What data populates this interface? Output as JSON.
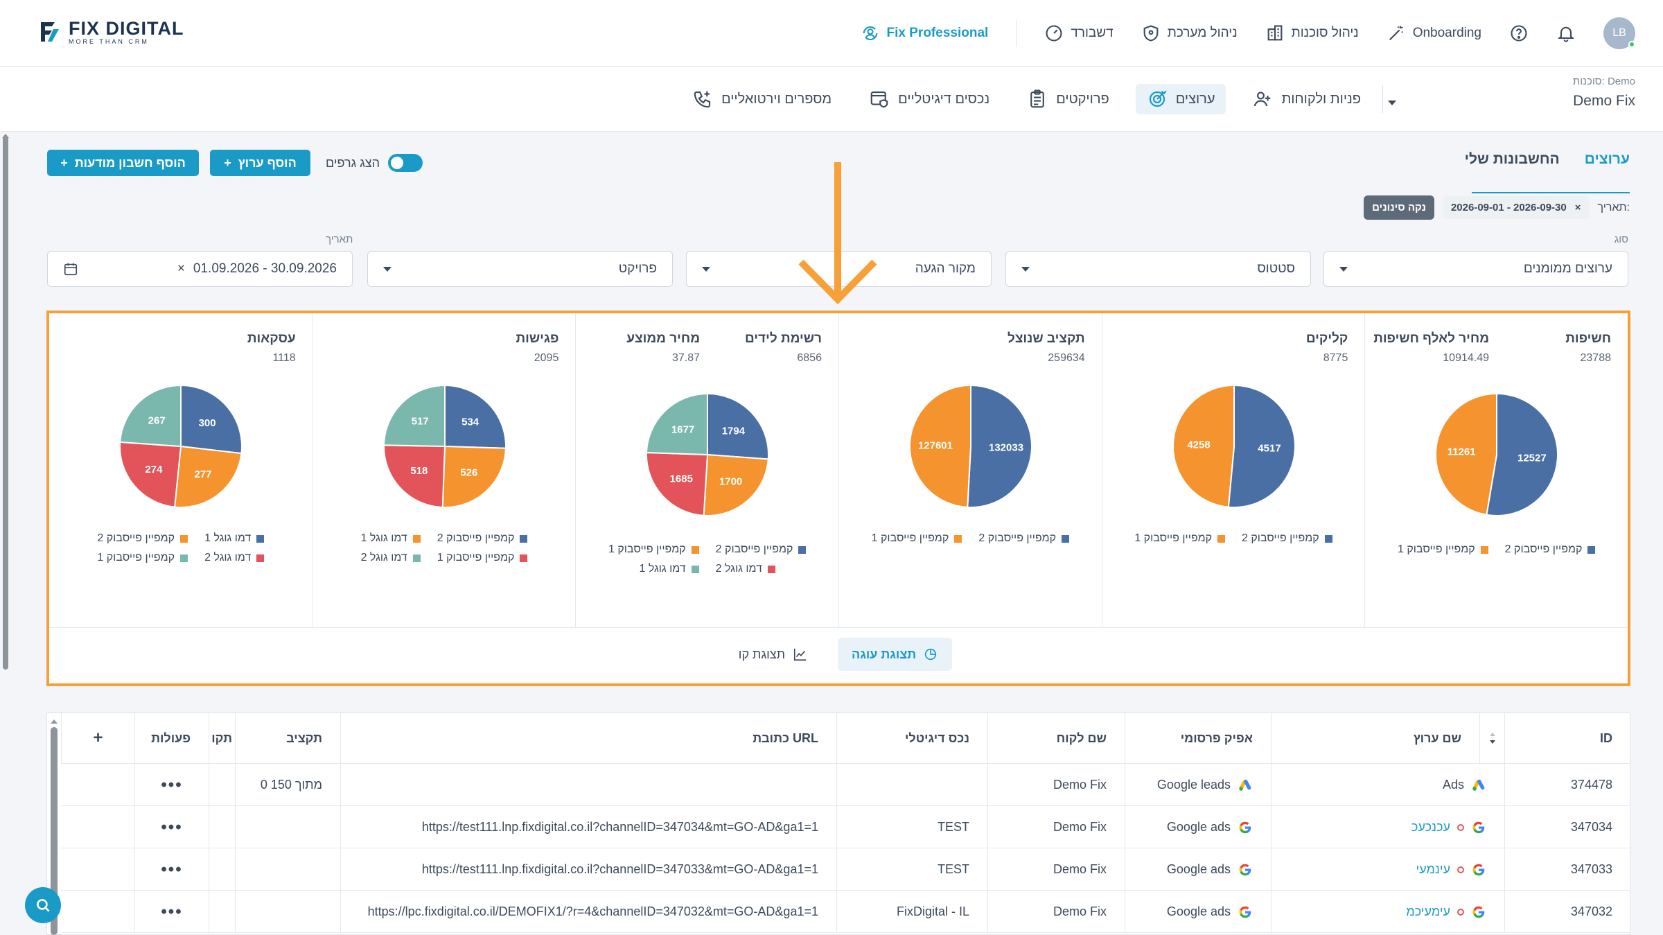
{
  "brand": {
    "name": "FIX DIGITAL",
    "tagline": "MORE THAN CRM"
  },
  "topnav": {
    "avatar_initials": "LB",
    "onboarding": "Onboarding",
    "agencies": "ניהול סוכנות",
    "system": "ניהול מערכת",
    "dashboard": "דשבורד",
    "fix_professional": "Fix Professional"
  },
  "agency": {
    "label": "סוכנות: Demo",
    "value": "Demo Fix"
  },
  "subnav": [
    {
      "label": "פניות ולקוחות"
    },
    {
      "label": "ערוצים",
      "active": true
    },
    {
      "label": "פרויקטים"
    },
    {
      "label": "נכסים דיגיטליים"
    },
    {
      "label": "מספרים וירטואליים"
    }
  ],
  "tabs": {
    "channels": "ערוצים",
    "my_accounts": "החשבונות שלי"
  },
  "actions": {
    "add_channel": "הוסף ערוץ",
    "add_ad_account": "הוסף חשבון מודעות",
    "show_charts": "הצג גרפים"
  },
  "date_filter": {
    "label": "תאריך:",
    "chip": "2026-09-01 - 2026-09-30",
    "chip_remove": "×",
    "clear": "נקה סינונים"
  },
  "filters": {
    "type_label": "סוג",
    "type_value": "ערוצים ממומנים",
    "status": "סטטוס",
    "source": "מקור הגעה",
    "project": "פרויקט",
    "date_label": "תאריך",
    "date_value": "01.09.2026 - 30.09.2026",
    "date_clear": "×"
  },
  "colors": {
    "blue": "#4a6fa5",
    "orange": "#f5932f",
    "red": "#e2535a",
    "teal": "#7ab8ae",
    "accent": "#1a9bc7"
  },
  "chart_data": [
    {
      "type": "pie",
      "title": "חשיפות",
      "total": "23788",
      "secondary_title": "מחיר לאלף חשיפות",
      "secondary_total": "10914.49",
      "series": [
        {
          "name": "קמפיין פייסבוק 2",
          "value": 12527,
          "color": "#4a6fa5"
        },
        {
          "name": "קמפיין פייסבוק 1",
          "value": 11261,
          "color": "#f5932f"
        }
      ]
    },
    {
      "type": "pie",
      "title": "קליקים",
      "total": "8775",
      "series": [
        {
          "name": "קמפיין פייסבוק 2",
          "value": 4517,
          "color": "#4a6fa5"
        },
        {
          "name": "קמפיין פייסבוק 1",
          "value": 4258,
          "color": "#f5932f"
        }
      ]
    },
    {
      "type": "pie",
      "title": "תקציב שנוצל",
      "total": "259634",
      "series": [
        {
          "name": "קמפיין פייסבוק 2",
          "value": 132033,
          "color": "#4a6fa5"
        },
        {
          "name": "קמפיין פייסבוק 1",
          "value": 127601,
          "color": "#f5932f"
        }
      ]
    },
    {
      "type": "pie",
      "title": "רשימת לידים",
      "total": "6856",
      "secondary_title": "מחיר ממוצע",
      "secondary_total": "37.87",
      "series": [
        {
          "name": "קמפיין פייסבוק 2",
          "value": 1794,
          "color": "#4a6fa5"
        },
        {
          "name": "קמפיין פייסבוק 1",
          "value": 1700,
          "color": "#f5932f"
        },
        {
          "name": "דמו גוגל 2",
          "value": 1685,
          "color": "#e2535a"
        },
        {
          "name": "דמו גוגל 1",
          "value": 1677,
          "color": "#7ab8ae"
        }
      ]
    },
    {
      "type": "pie",
      "title": "פגישות",
      "total": "2095",
      "series": [
        {
          "name": "קמפיין פייסבוק 2",
          "value": 534,
          "color": "#4a6fa5"
        },
        {
          "name": "דמו גוגל 1",
          "value": 526,
          "color": "#f5932f"
        },
        {
          "name": "קמפיין פייסבוק 1",
          "value": 518,
          "color": "#e2535a"
        },
        {
          "name": "דמו גוגל 2",
          "value": 517,
          "color": "#7ab8ae"
        }
      ]
    },
    {
      "type": "pie",
      "title": "עסקאות",
      "total": "1118",
      "series": [
        {
          "name": "דמו גוגל 1",
          "value": 300,
          "color": "#4a6fa5"
        },
        {
          "name": "קמפיין פייסבוק 2",
          "value": 277,
          "color": "#f5932f"
        },
        {
          "name": "דמו גוגל 2",
          "value": 274,
          "color": "#e2535a"
        },
        {
          "name": "קמפיין פייסבוק 1",
          "value": 267,
          "color": "#7ab8ae"
        }
      ]
    }
  ],
  "view_toggle": {
    "pie": "תצוגת עוגה",
    "line": "תצוגת קו"
  },
  "table": {
    "headers": {
      "id": "ID",
      "name": "שם ערוץ",
      "platform": "אפיק פרסומי",
      "client": "שם לקוח",
      "asset": "נכס דיגיטלי",
      "url": "כתובת URL",
      "budget": "תקציב",
      "partial": "תקו",
      "actions": "פעולות",
      "add": "+"
    },
    "rows": [
      {
        "id": "374478",
        "name": "Ads",
        "platform": "Google leads",
        "client": "Demo Fix",
        "asset": "",
        "url": "",
        "budget": "0 מתוך 150",
        "actions": "•••"
      },
      {
        "id": "347034",
        "name": "עכנכעכ",
        "platform": "Google ads",
        "client": "Demo Fix",
        "asset": "TEST",
        "url": "https://test111.lnp.fixdigital.co.il?channelID=347034&mt=GO-AD&ga1=1",
        "budget": "",
        "actions": "•••"
      },
      {
        "id": "347033",
        "name": "עינמעי",
        "platform": "Google ads",
        "client": "Demo Fix",
        "asset": "TEST",
        "url": "https://test111.lnp.fixdigital.co.il?channelID=347033&mt=GO-AD&ga1=1",
        "budget": "",
        "actions": "•••"
      },
      {
        "id": "347032",
        "name": "עימעיכמ",
        "platform": "Google ads",
        "client": "Demo Fix",
        "asset": "FixDigital - IL",
        "url": "https://lpc.fixdigital.co.il/DEMOFIX1/?r=4&channelID=347032&mt=GO-AD&ga1=1",
        "budget": "",
        "actions": "•••"
      }
    ]
  }
}
